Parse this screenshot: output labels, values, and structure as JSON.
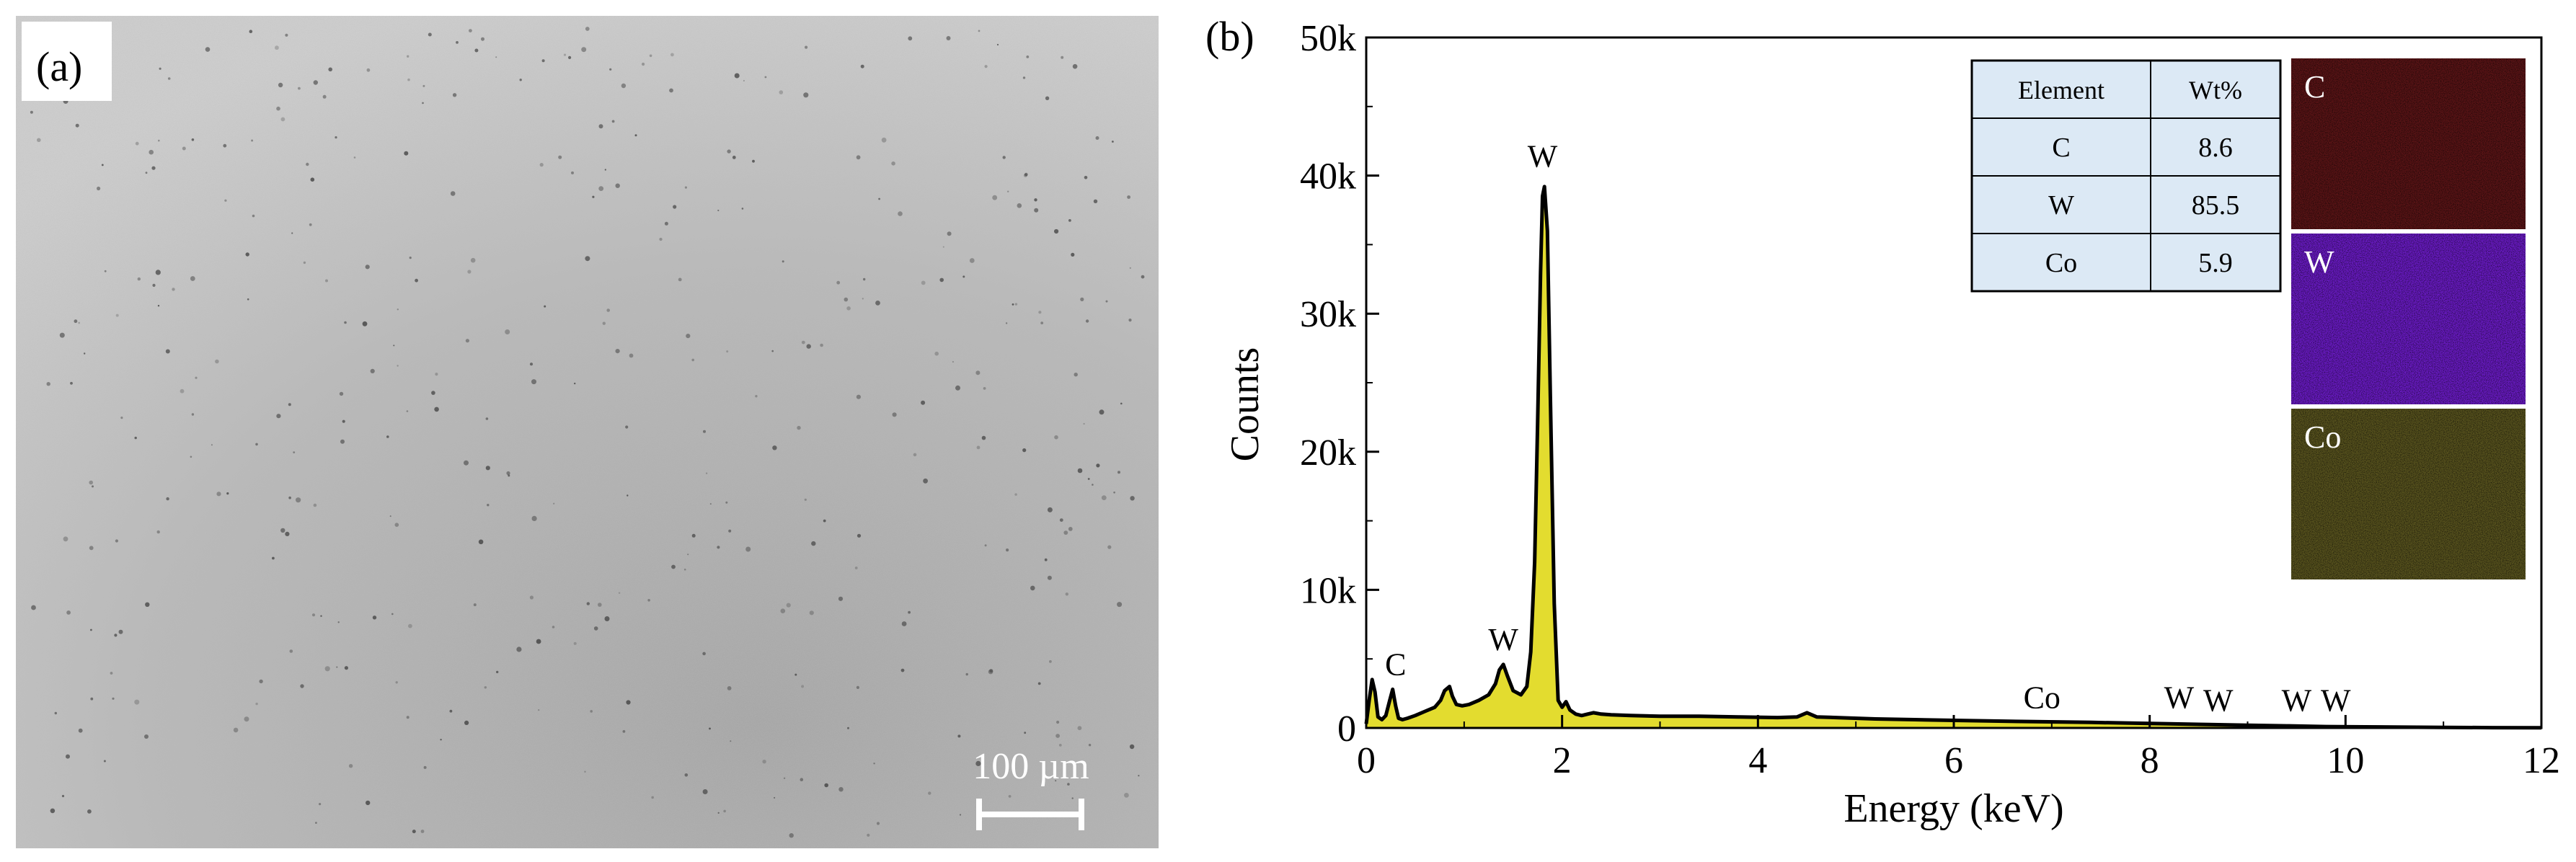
{
  "panel_a": {
    "label": "(a)",
    "scale_bar_label": "100 µm"
  },
  "panel_b": {
    "label": "(b)"
  },
  "chart_data": {
    "type": "area",
    "xlabel": "Energy (keV)",
    "ylabel": "Counts",
    "xlim": [
      0,
      12
    ],
    "ylim": [
      0,
      50000
    ],
    "x_ticks": [
      0,
      2,
      4,
      6,
      8,
      10,
      12
    ],
    "x_tick_labels": [
      "0",
      "2",
      "4",
      "6",
      "8",
      "10",
      "12"
    ],
    "y_ticks": [
      0,
      10000,
      20000,
      30000,
      40000,
      50000
    ],
    "y_tick_labels": [
      "0",
      "10k",
      "20k",
      "30k",
      "40k",
      "50k"
    ],
    "series": [
      {
        "fill_color": "#e3dc2f",
        "line_color": "#000000",
        "x": [
          0,
          0.03,
          0.06,
          0.09,
          0.12,
          0.16,
          0.2,
          0.24,
          0.27,
          0.3,
          0.33,
          0.37,
          0.42,
          0.5,
          0.6,
          0.7,
          0.76,
          0.8,
          0.85,
          0.88,
          0.92,
          0.98,
          1.05,
          1.15,
          1.25,
          1.32,
          1.36,
          1.4,
          1.44,
          1.5,
          1.58,
          1.64,
          1.68,
          1.72,
          1.75,
          1.78,
          1.8,
          1.82,
          1.85,
          1.88,
          1.92,
          1.96,
          2.0,
          2.04,
          2.08,
          2.14,
          2.2,
          2.26,
          2.32,
          2.4,
          2.5,
          2.7,
          3.0,
          3.4,
          3.8,
          4.2,
          4.4,
          4.5,
          4.6,
          4.8,
          5.2,
          5.6,
          6.0,
          6.4,
          6.9,
          7.4,
          7.8,
          8.2,
          8.6,
          9.0,
          9.4,
          9.8,
          10.2,
          10.6,
          11.0,
          11.5,
          12.0
        ],
        "y": [
          300,
          2000,
          3500,
          2600,
          800,
          600,
          900,
          2000,
          2800,
          1600,
          700,
          600,
          700,
          900,
          1200,
          1500,
          2000,
          2700,
          3000,
          2300,
          1700,
          1600,
          1700,
          2000,
          2400,
          3200,
          4200,
          4600,
          3800,
          2700,
          2400,
          3000,
          5500,
          12000,
          22000,
          33000,
          38500,
          39200,
          36000,
          24000,
          9000,
          2000,
          1500,
          1900,
          1300,
          1000,
          900,
          1000,
          1100,
          1000,
          950,
          900,
          850,
          850,
          800,
          750,
          800,
          1100,
          800,
          750,
          650,
          600,
          550,
          500,
          450,
          400,
          350,
          300,
          250,
          200,
          150,
          100,
          80,
          60,
          40,
          20,
          10
        ]
      }
    ],
    "annotations": [
      {
        "text": "C",
        "x": 0.3,
        "y": 3200
      },
      {
        "text": "W",
        "x": 1.4,
        "y": 5000
      },
      {
        "text": "W",
        "x": 1.8,
        "y": 40000
      },
      {
        "text": "Co",
        "x": 6.9,
        "y": 800
      },
      {
        "text": "W",
        "x": 8.3,
        "y": 800
      },
      {
        "text": "W",
        "x": 8.7,
        "y": 600
      },
      {
        "text": "W",
        "x": 9.5,
        "y": 600
      },
      {
        "text": "W",
        "x": 9.9,
        "y": 600
      }
    ],
    "table": {
      "headers": [
        "Element",
        "Wt%"
      ],
      "rows": [
        [
          "C",
          "8.6"
        ],
        [
          "W",
          "85.5"
        ],
        [
          "Co",
          "5.9"
        ]
      ],
      "background": "#dce9f5"
    },
    "maps": [
      {
        "label": "C",
        "color": "#5a1416"
      },
      {
        "label": "W",
        "color": "#6a1bc4"
      },
      {
        "label": "Co",
        "color": "#58531e"
      }
    ]
  }
}
